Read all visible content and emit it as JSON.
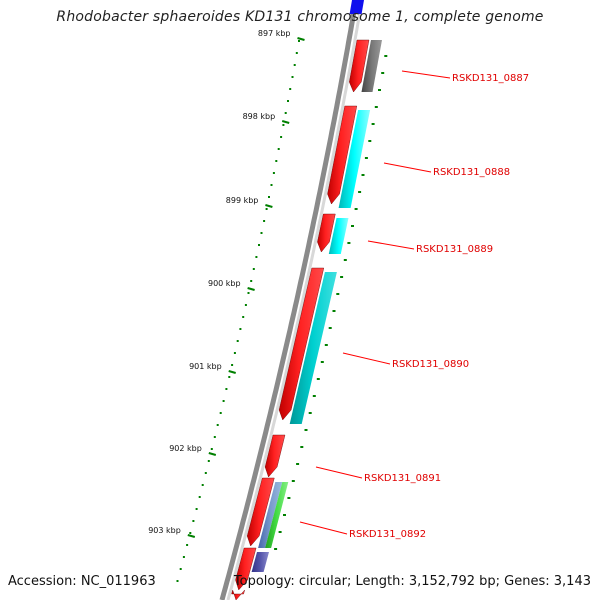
{
  "title": "Rhodobacter sphaeroides KD131 chromosome 1, complete genome",
  "accession": "Accession: NC_011963",
  "summary": "Topology: circular; Length: 3,152,792 bp; Genes: 3,143",
  "colors": {
    "backbone": "#8a8a8a",
    "cds": "#ff0000",
    "tick": "#008000",
    "label": "#e00000",
    "leader": "#ff0000"
  },
  "kbp_ticks": [
    "897 kbp",
    "898 kbp",
    "899 kbp",
    "900 kbp",
    "901 kbp",
    "902 kbp",
    "903 kbp"
  ],
  "genes": [
    {
      "name": "RSKD131_0887",
      "feature_color": "#6e6e6e"
    },
    {
      "name": "RSKD131_0888",
      "feature_color": "#00ffff"
    },
    {
      "name": "RSKD131_0889",
      "feature_color": "#00ffff"
    },
    {
      "name": "RSKD131_0890",
      "feature_color": "#00cccc"
    },
    {
      "name": "RSKD131_0891",
      "feature_color": ""
    },
    {
      "name": "RSKD131_0892",
      "feature_color": "#5577cc"
    }
  ]
}
